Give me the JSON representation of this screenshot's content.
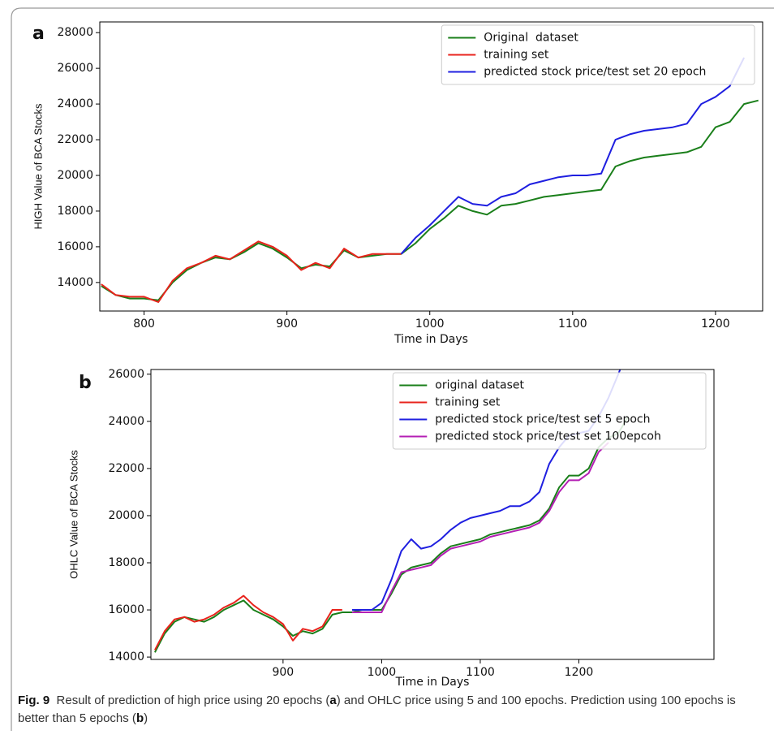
{
  "chart_data": [
    {
      "type": "line",
      "panel_label": "a",
      "xlabel": "Time in Days",
      "ylabel": "HIGH Value of BCA Stocks",
      "x": [
        770,
        780,
        790,
        800,
        810,
        820,
        830,
        840,
        850,
        860,
        870,
        880,
        890,
        900,
        910,
        920,
        930,
        940,
        950,
        960,
        970,
        980,
        990,
        1000,
        1010,
        1020,
        1030,
        1040,
        1050,
        1060,
        1070,
        1080,
        1090,
        1100,
        1110,
        1120,
        1130,
        1140,
        1150,
        1160,
        1170,
        1180,
        1190,
        1200,
        1210,
        1220,
        1230
      ],
      "series": [
        {
          "name": "Original  dataset",
          "color": "#1a7f1a",
          "values": [
            13800,
            13300,
            13100,
            13100,
            13000,
            14000,
            14700,
            15100,
            15400,
            15300,
            15700,
            16200,
            15900,
            15400,
            14800,
            15000,
            14900,
            15800,
            15400,
            15500,
            15600,
            15600,
            16200,
            17000,
            17600,
            18300,
            18000,
            17800,
            18300,
            18400,
            18600,
            18800,
            18900,
            19000,
            19100,
            19200,
            20500,
            20800,
            21000,
            21100,
            21200,
            21300,
            21600,
            22700,
            23000,
            24000,
            24200
          ]
        },
        {
          "name": "training set",
          "color": "#e8231c",
          "values": [
            13900,
            13300,
            13200,
            13200,
            12900,
            14100,
            14800,
            15100,
            15500,
            15300,
            15800,
            16300,
            16000,
            15500,
            14700,
            15100,
            14800,
            15900,
            15400,
            15600,
            15600,
            15600,
            null,
            null,
            null,
            null,
            null,
            null,
            null,
            null,
            null,
            null,
            null,
            null,
            null,
            null,
            null,
            null,
            null,
            null,
            null,
            null,
            null,
            null,
            null,
            null,
            null
          ]
        },
        {
          "name": "predicted stock price/test set 20 epoch",
          "color": "#1f1fe0",
          "values": [
            null,
            null,
            null,
            null,
            null,
            null,
            null,
            null,
            null,
            null,
            null,
            null,
            null,
            null,
            null,
            null,
            null,
            null,
            null,
            null,
            null,
            15600,
            16500,
            17200,
            18000,
            18800,
            18400,
            18300,
            18800,
            19000,
            19500,
            19700,
            19900,
            20000,
            20000,
            20100,
            22000,
            22300,
            22500,
            22600,
            22700,
            22900,
            24000,
            24400,
            25000,
            26600,
            null
          ]
        }
      ],
      "xlim": [
        769,
        1233
      ],
      "ylim": [
        12400,
        28600
      ],
      "xticks": [
        800,
        900,
        1000,
        1100,
        1200
      ],
      "yticks": [
        14000,
        16000,
        18000,
        20000,
        22000,
        24000,
        26000,
        28000
      ],
      "legend": "upper right"
    },
    {
      "type": "line",
      "panel_label": "b",
      "xlabel": "Time in Days",
      "ylabel": "OHLC Value of BCA Stocks",
      "x": [
        770,
        780,
        790,
        800,
        810,
        820,
        830,
        840,
        850,
        860,
        870,
        880,
        890,
        900,
        910,
        920,
        930,
        940,
        950,
        960,
        970,
        980,
        990,
        1000,
        1010,
        1020,
        1030,
        1040,
        1050,
        1060,
        1070,
        1080,
        1090,
        1100,
        1110,
        1120,
        1130,
        1140,
        1150,
        1160,
        1170,
        1180,
        1190,
        1200,
        1210,
        1220,
        1230,
        1240,
        1250
      ],
      "series": [
        {
          "name": "original dataset",
          "color": "#1a7f1a",
          "values": [
            14200,
            15000,
            15500,
            15700,
            15600,
            15500,
            15700,
            16000,
            16200,
            16400,
            16000,
            15800,
            15600,
            15300,
            14900,
            15100,
            15000,
            15200,
            15800,
            15900,
            15900,
            16000,
            16000,
            16000,
            16700,
            17500,
            17800,
            17900,
            18000,
            18400,
            18700,
            18800,
            18900,
            19000,
            19200,
            19300,
            19400,
            19500,
            19600,
            19800,
            20300,
            21200,
            21700,
            21700,
            22000,
            22900,
            23300,
            23500,
            24200
          ]
        },
        {
          "name": "training set",
          "color": "#e8231c",
          "values": [
            14300,
            15100,
            15600,
            15700,
            15500,
            15600,
            15800,
            16100,
            16300,
            16600,
            16200,
            15900,
            15700,
            15400,
            14700,
            15200,
            15100,
            15300,
            16000,
            16000,
            null,
            null,
            null,
            null,
            null,
            null,
            null,
            null,
            null,
            null,
            null,
            null,
            null,
            null,
            null,
            null,
            null,
            null,
            null,
            null,
            null,
            null,
            null,
            null,
            null,
            null,
            null,
            null,
            null
          ]
        },
        {
          "name": "predicted stock price/test set 5 epoch",
          "color": "#1f1fe0",
          "values": [
            null,
            null,
            null,
            null,
            null,
            null,
            null,
            null,
            null,
            null,
            null,
            null,
            null,
            null,
            null,
            null,
            null,
            null,
            null,
            null,
            16000,
            16000,
            16000,
            16300,
            17300,
            18500,
            19000,
            18600,
            18700,
            19000,
            19400,
            19700,
            19900,
            20000,
            20100,
            20200,
            20400,
            20400,
            20600,
            21000,
            22200,
            22900,
            23400,
            23500,
            23600,
            24200,
            25000,
            26000,
            27100
          ]
        },
        {
          "name": "predicted stock price/test set 100epcoh",
          "color": "#b41fb4",
          "values": [
            null,
            null,
            null,
            null,
            null,
            null,
            null,
            null,
            null,
            null,
            null,
            null,
            null,
            null,
            null,
            null,
            null,
            null,
            null,
            null,
            15900,
            15900,
            15900,
            15900,
            16800,
            17600,
            17700,
            17800,
            17900,
            18300,
            18600,
            18700,
            18800,
            18900,
            19100,
            19200,
            19300,
            19400,
            19500,
            19700,
            20200,
            21000,
            21500,
            21500,
            21800,
            22700,
            23100,
            null,
            null
          ]
        }
      ],
      "xlim": [
        766,
        1337
      ],
      "ylim": [
        13900,
        26200
      ],
      "xticks": [
        900,
        1000,
        1100,
        1200
      ],
      "yticks": [
        14000,
        16000,
        18000,
        20000,
        22000,
        24000,
        26000
      ],
      "legend": "upper right"
    }
  ],
  "caption": [
    "Fig. 9",
    "Result of prediction of high price using 20 epochs (",
    "a",
    ") and OHLC price using 5 and 100 epochs. Prediction using 100 epochs is better than 5 epochs (",
    "b",
    ")"
  ]
}
